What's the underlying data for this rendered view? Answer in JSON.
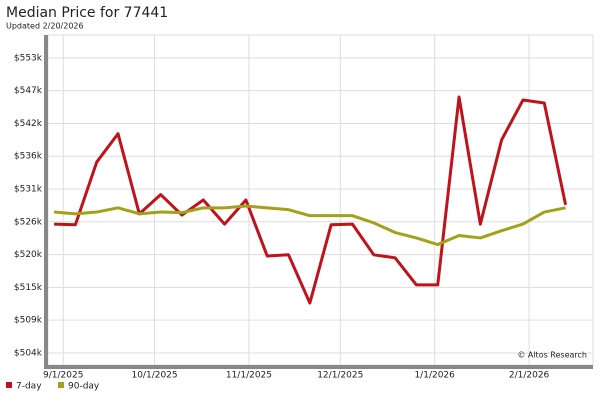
{
  "chart_data": {
    "type": "line",
    "title": "Median Price for 77441",
    "subtitle": "Updated 2/20/2026",
    "annotation": "© Altos Research",
    "x": [
      "2025-08-29",
      "2025-09-05",
      "2025-09-12",
      "2025-09-19",
      "2025-09-26",
      "2025-10-03",
      "2025-10-10",
      "2025-10-17",
      "2025-10-24",
      "2025-10-31",
      "2025-11-07",
      "2025-11-14",
      "2025-11-21",
      "2025-11-28",
      "2025-12-05",
      "2025-12-12",
      "2025-12-19",
      "2025-12-26",
      "2026-01-02",
      "2026-01-09",
      "2026-01-16",
      "2026-01-23",
      "2026-01-30",
      "2026-02-06",
      "2026-02-13"
    ],
    "series": [
      {
        "name": "7-day",
        "color": "#c0121b",
        "values": [
          525400,
          525300,
          535700,
          540400,
          527100,
          530300,
          526900,
          529400,
          525400,
          529400,
          520100,
          520300,
          512300,
          525300,
          525400,
          520300,
          519800,
          515300,
          515300,
          546500,
          525400,
          539400,
          546000,
          545500,
          528600
        ]
      },
      {
        "name": "90-day",
        "color": "#a3a01a",
        "values": [
          527400,
          527100,
          527400,
          528100,
          527100,
          527400,
          527300,
          528100,
          528100,
          528400,
          528100,
          527800,
          526800,
          526800,
          526800,
          525600,
          524000,
          523100,
          522000,
          523500,
          523100,
          524300,
          525400,
          527400,
          528100
        ]
      }
    ],
    "xlim": [
      "2025-08-27",
      "2026-02-22"
    ],
    "xticks": [
      {
        "value": "2025-09-01",
        "label": "9/1/2025"
      },
      {
        "value": "2025-10-01",
        "label": "10/1/2025"
      },
      {
        "value": "2025-11-01",
        "label": "11/1/2025"
      },
      {
        "value": "2025-12-01",
        "label": "12/1/2025"
      },
      {
        "value": "2026-01-01",
        "label": "1/1/2026"
      },
      {
        "value": "2026-02-01",
        "label": "2/1/2026"
      }
    ],
    "ylim": [
      502000,
      556800
    ],
    "yticks": [
      {
        "value": 504000,
        "label": "$504k"
      },
      {
        "value": 509444,
        "label": "$509k"
      },
      {
        "value": 514889,
        "label": "$515k"
      },
      {
        "value": 520333,
        "label": "$520k"
      },
      {
        "value": 525778,
        "label": "$526k"
      },
      {
        "value": 531222,
        "label": "$531k"
      },
      {
        "value": 536667,
        "label": "$536k"
      },
      {
        "value": 542111,
        "label": "$542k"
      },
      {
        "value": 547556,
        "label": "$547k"
      },
      {
        "value": 553000,
        "label": "$553k"
      }
    ],
    "grid": true
  }
}
